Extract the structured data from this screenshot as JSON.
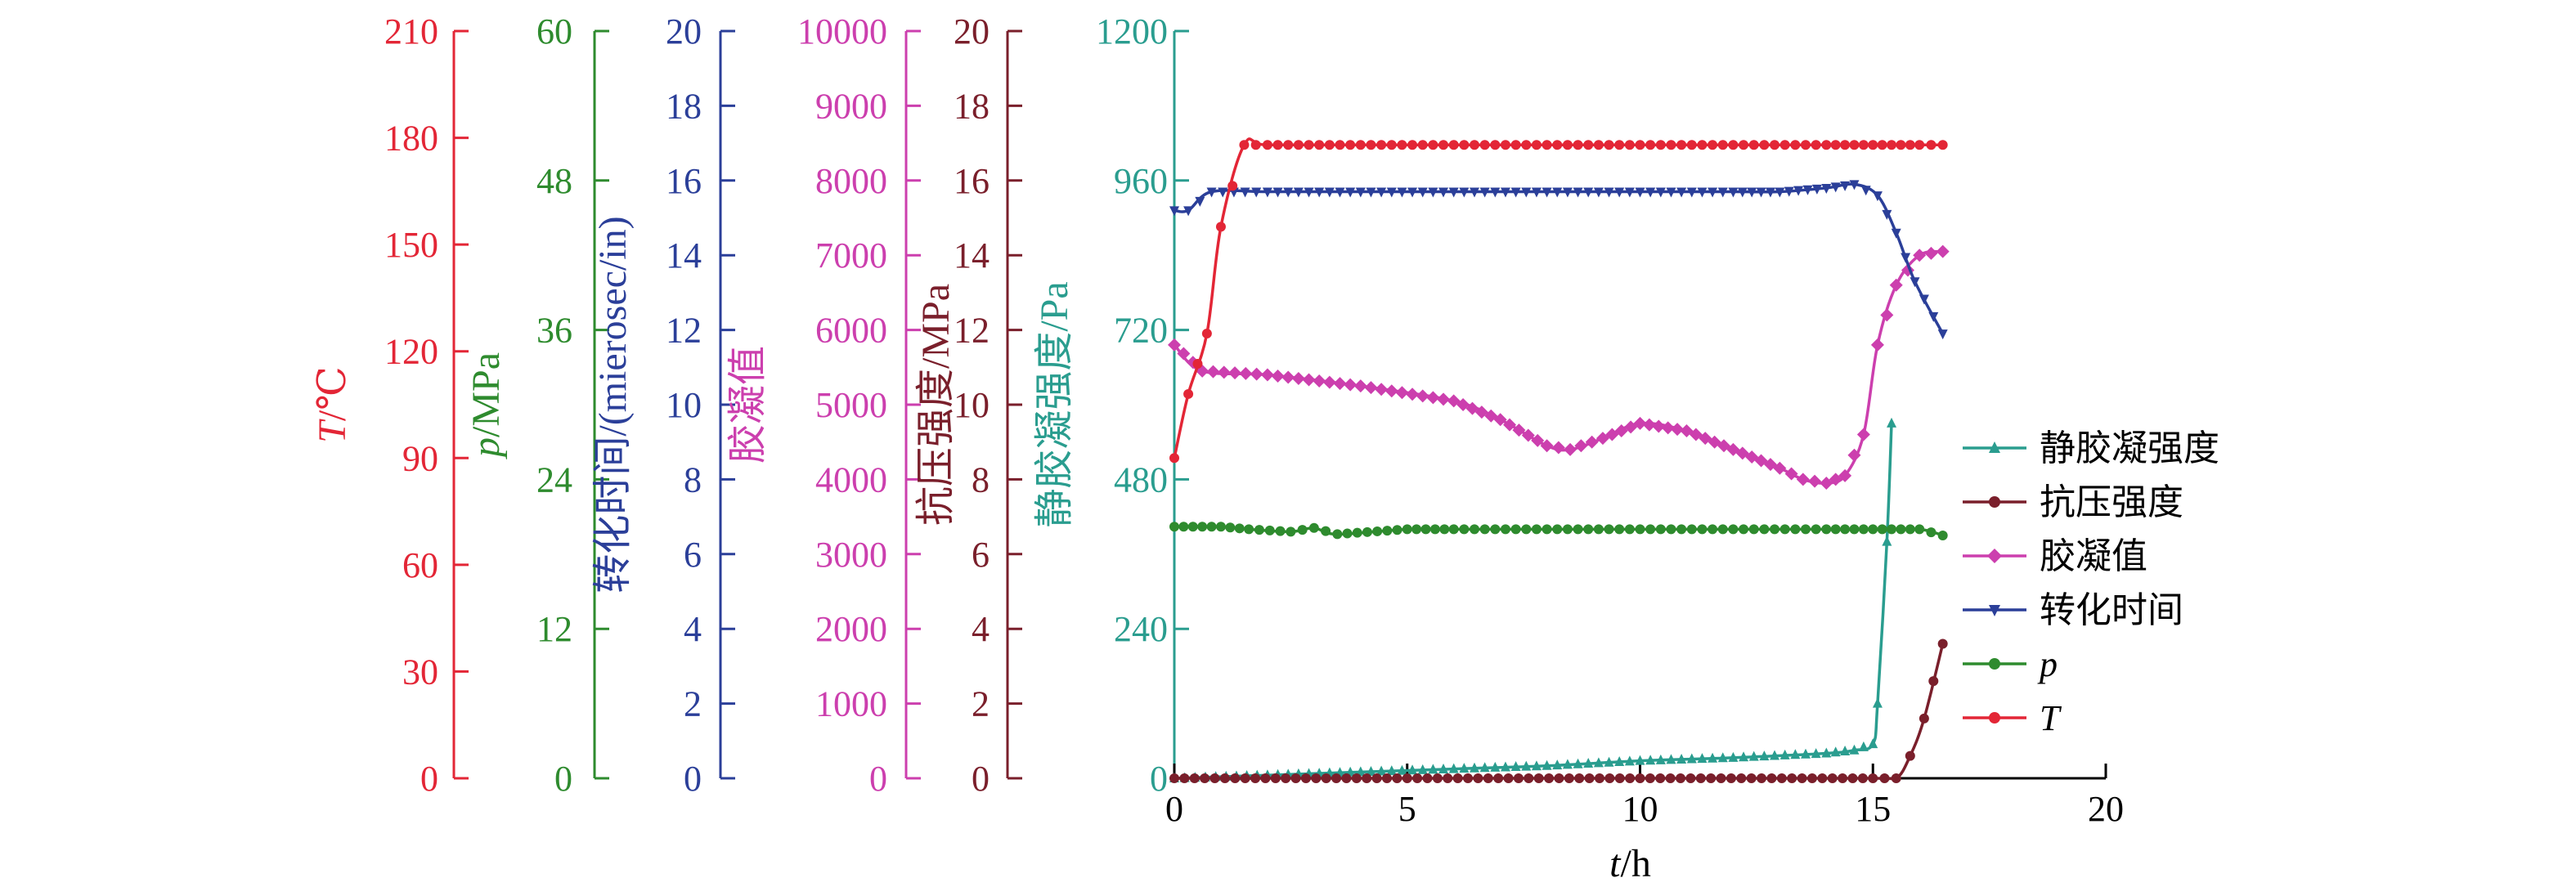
{
  "chart_data": {
    "type": "line",
    "x_axis": {
      "label_var": "t",
      "label_unit": "/h",
      "range": [
        0,
        20
      ],
      "ticks": [
        0,
        5,
        10,
        15,
        20
      ]
    },
    "y_axes": [
      {
        "id": "T",
        "label_var": "T",
        "label_unit": "/℃",
        "range": [
          0,
          210
        ],
        "ticks": [
          0,
          30,
          60,
          90,
          120,
          150,
          180,
          210
        ],
        "color": "#e32636"
      },
      {
        "id": "p",
        "label_var": "p",
        "label_unit": "/MPa",
        "range": [
          0,
          60
        ],
        "ticks": [
          0,
          12,
          24,
          36,
          48,
          60
        ],
        "color": "#2e8b2e"
      },
      {
        "id": "conv",
        "label_var": "",
        "label_unit": "转化时间/(mierosec/in)",
        "range": [
          0,
          20
        ],
        "ticks": [
          0,
          2,
          4,
          6,
          8,
          10,
          12,
          14,
          16,
          18,
          20
        ],
        "color": "#2b3f99"
      },
      {
        "id": "gel",
        "label_var": "",
        "label_unit": "胶凝值",
        "range": [
          0,
          10000
        ],
        "ticks": [
          0,
          1000,
          2000,
          3000,
          4000,
          5000,
          6000,
          7000,
          8000,
          9000,
          10000
        ],
        "color": "#cc3fae"
      },
      {
        "id": "cs",
        "label_var": "",
        "label_unit": "抗压强度/MPa",
        "range": [
          0,
          20
        ],
        "ticks": [
          0,
          2,
          4,
          6,
          8,
          10,
          12,
          14,
          16,
          18,
          20
        ],
        "color": "#7a1f2b"
      },
      {
        "id": "sgs",
        "label_var": "",
        "label_unit": "静胶凝强度/Pa",
        "range": [
          0,
          1200
        ],
        "ticks": [
          0,
          240,
          480,
          720,
          960,
          1200
        ],
        "color": "#2a9d8f"
      }
    ],
    "series": [
      {
        "name": "静胶凝强度",
        "axis": "sgs",
        "color": "#2a9d8f",
        "marker": "triangle-up",
        "x": [
          0,
          2,
          4,
          6,
          8,
          10,
          12,
          14,
          14.6,
          15.0,
          15.1,
          15.3,
          15.4
        ],
        "y": [
          0,
          5,
          10,
          15,
          20,
          28,
          33,
          40,
          45,
          55,
          120,
          380,
          570
        ]
      },
      {
        "name": "抗压强度",
        "axis": "cs",
        "color": "#7a1f2b",
        "marker": "circle",
        "x": [
          0,
          5,
          10,
          15,
          15.5,
          15.8,
          16.1,
          16.5
        ],
        "y": [
          0,
          0,
          0,
          0,
          0,
          0.6,
          1.6,
          3.6
        ]
      },
      {
        "name": "胶凝值",
        "axis": "gel",
        "color": "#cc3fae",
        "marker": "diamond",
        "x": [
          0,
          0.6,
          2,
          4,
          6,
          7,
          8,
          8.5,
          9.2,
          10,
          11,
          12,
          13,
          13.5,
          14,
          14.4,
          14.8,
          15.1,
          15.5,
          16,
          16.5
        ],
        "y": [
          5800,
          5450,
          5400,
          5250,
          5050,
          4800,
          4450,
          4400,
          4550,
          4750,
          4650,
          4400,
          4150,
          4000,
          3950,
          4050,
          4600,
          5800,
          6600,
          7000,
          7050
        ]
      },
      {
        "name": "转化时间",
        "axis": "conv",
        "color": "#2b3f99",
        "marker": "triangle-down",
        "x": [
          0,
          0.3,
          0.8,
          2,
          4,
          6,
          8,
          10,
          12,
          13,
          14,
          14.6,
          15.1,
          15.5,
          15.9,
          16.5
        ],
        "y": [
          15.2,
          15.2,
          15.7,
          15.7,
          15.7,
          15.7,
          15.7,
          15.7,
          15.7,
          15.7,
          15.8,
          15.9,
          15.6,
          14.6,
          13.3,
          11.9
        ]
      },
      {
        "name": "p",
        "axis": "p",
        "color": "#2e8b2e",
        "marker": "circle",
        "x": [
          0,
          1,
          1.6,
          2.5,
          3,
          3.5,
          5,
          6,
          8,
          10,
          12,
          14,
          15,
          16,
          16.5
        ],
        "y": [
          20.2,
          20.2,
          20.0,
          19.8,
          20.1,
          19.6,
          20.0,
          20.0,
          20.0,
          20.0,
          20.0,
          20.0,
          20.0,
          20.0,
          19.5
        ]
      },
      {
        "name": "T",
        "axis": "T",
        "color": "#e32636",
        "marker": "circle",
        "x": [
          0,
          0.3,
          0.7,
          1.0,
          1.5,
          2,
          4,
          6,
          8,
          10,
          12,
          14,
          15,
          16,
          16.5
        ],
        "y": [
          90,
          108,
          125,
          155,
          178,
          178,
          178,
          178,
          178,
          178,
          178,
          178,
          178,
          178,
          178
        ]
      }
    ]
  }
}
